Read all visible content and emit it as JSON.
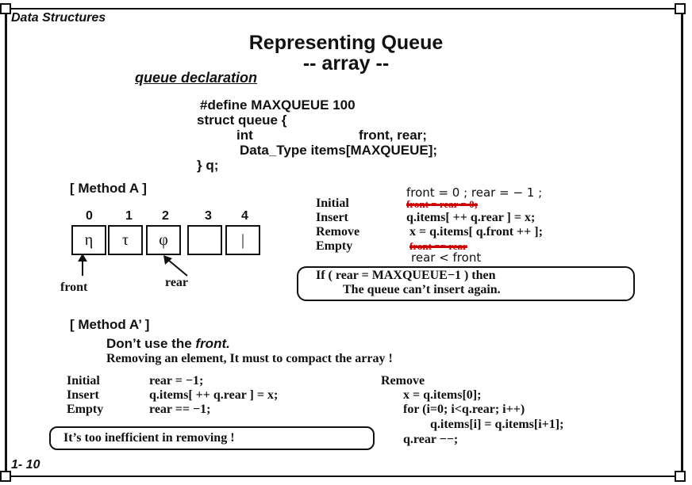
{
  "header": {
    "course": "Data Structures",
    "page_number": "1- 10"
  },
  "title": {
    "line1": "Representing Queue",
    "line2": "-- array --"
  },
  "declaration": {
    "label": "queue declaration",
    "lines": [
      "#define  MAXQUEUE    100",
      "struct  queue  {",
      "int",
      "front,  rear;",
      "Data_Type  items[MAXQUEUE];",
      "}  q;"
    ]
  },
  "method_a": {
    "label": "[ Method   A ]",
    "indices": [
      "0",
      "1",
      "2",
      "3",
      "4"
    ],
    "cells": [
      "η",
      "τ",
      "φ",
      "",
      "|"
    ],
    "front_label": "front",
    "rear_label": "rear",
    "ops": [
      {
        "name": "Initial",
        "handwritten": "front = 0 ;  rear = − 1 ;",
        "struck": "front = rear = 0;"
      },
      {
        "name": "Insert",
        "code": "q.items[ ++ q.rear ] = x;"
      },
      {
        "name": "Remove",
        "code": "x = q.items[ q.front ++ ];"
      },
      {
        "name": "Empty",
        "struck": "front == rear",
        "handwritten": "rear < front"
      }
    ],
    "note_line1": "If  ( rear = MAXQUEUE−1 )  then",
    "note_line2": "The queue can’t  insert again."
  },
  "method_a_prime": {
    "label": "[ Method   A’ ]",
    "line1_pre": "Don’t  use  the ",
    "line1_em": "front.",
    "line2": "Removing an element,  It must to compact the array !",
    "left": [
      {
        "name": "Initial",
        "code": "rear = −1;"
      },
      {
        "name": "Insert",
        "code": "q.items[ ++ q.rear ] = x;"
      },
      {
        "name": "Empty",
        "code": "rear == −1;"
      }
    ],
    "remove_title": "Remove",
    "remove_lines": [
      "x = q.items[0];",
      "for (i=0; i<q.rear; i++)",
      "q.items[i] = q.items[i+1];",
      "q.rear −−;"
    ],
    "note": "It’s too inefficient in removing !"
  }
}
